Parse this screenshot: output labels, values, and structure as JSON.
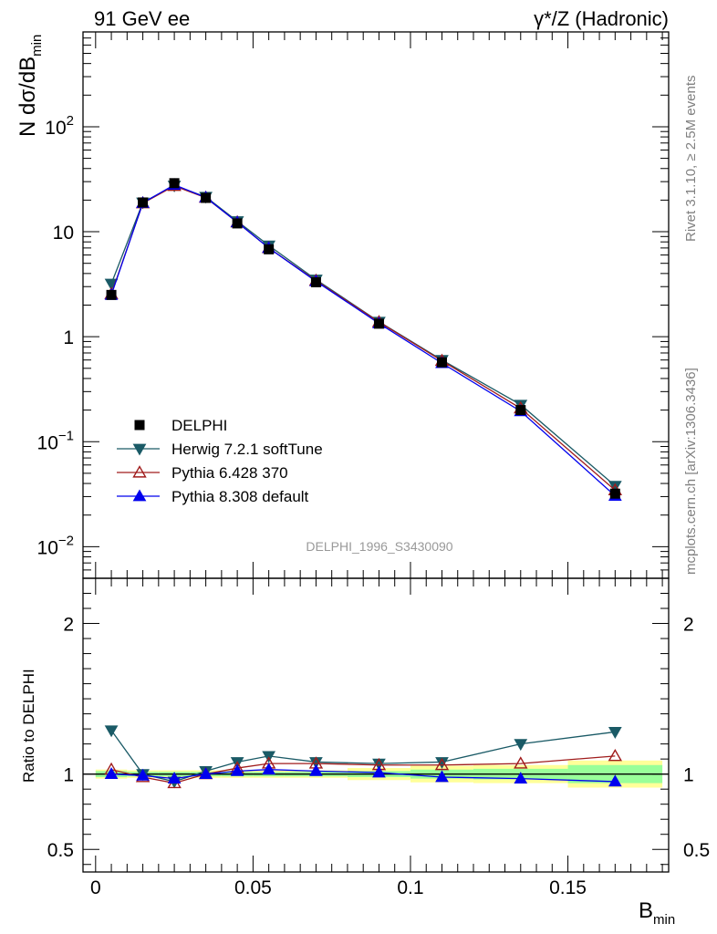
{
  "header": {
    "left": "91 GeV ee",
    "right": "γ*/Z (Hadronic)"
  },
  "side_notes": {
    "rivet": "Rivet 3.1.10, ≥ 2.5M events",
    "mcplots": "mcplots.cern.ch [arXiv:1306.3436]"
  },
  "watermark": "DELPHI_1996_S3430090",
  "colors": {
    "data": "#000000",
    "herwig": "#1a5a66",
    "pythia6": "#a01c1c",
    "pythia8": "#0000ee",
    "band_inner": "#99ff99",
    "band_outer": "#ffff99"
  },
  "chart_data": [
    {
      "type": "scatter",
      "panel": "main",
      "ylabel": "N dσ/dB",
      "ylabel_sub": "min",
      "yscale": "log",
      "ylim": [
        0.005,
        800
      ],
      "xlim": [
        -0.004,
        0.182
      ],
      "y_tick_labels": [
        {
          "base": "10",
          "exp": "−2",
          "value": 0.01
        },
        {
          "base": "10",
          "exp": "−1",
          "value": 0.1
        },
        {
          "base": "",
          "exp": "",
          "text": "1",
          "value": 1
        },
        {
          "base": "",
          "exp": "",
          "text": "10",
          "value": 10
        },
        {
          "base": "10",
          "exp": "2",
          "value": 100
        }
      ],
      "legend_position": "lower-left",
      "series": [
        {
          "name": "DELPHI",
          "key": "data",
          "marker": "square",
          "x": [
            0.005,
            0.015,
            0.025,
            0.035,
            0.045,
            0.055,
            0.07,
            0.09,
            0.11,
            0.135,
            0.165
          ],
          "y": [
            2.5,
            19.0,
            29.0,
            21.0,
            12.0,
            6.8,
            3.3,
            1.33,
            0.57,
            0.2,
            0.032
          ]
        },
        {
          "name": "Herwig 7.2.1 softTune",
          "key": "herwig",
          "marker": "triangle-down",
          "x": [
            0.005,
            0.015,
            0.025,
            0.035,
            0.045,
            0.055,
            0.07,
            0.09,
            0.11,
            0.135,
            0.165
          ],
          "y": [
            3.2,
            19.0,
            27.5,
            21.5,
            12.6,
            7.4,
            3.5,
            1.39,
            0.6,
            0.225,
            0.038
          ]
        },
        {
          "name": "Pythia 6.428 370",
          "key": "pythia6",
          "marker": "triangle-up-open",
          "x": [
            0.005,
            0.015,
            0.025,
            0.035,
            0.045,
            0.055,
            0.07,
            0.09,
            0.11,
            0.135,
            0.165
          ],
          "y": [
            2.55,
            18.7,
            27.3,
            21.1,
            12.3,
            7.0,
            3.42,
            1.38,
            0.59,
            0.208,
            0.0345
          ]
        },
        {
          "name": "Pythia 8.308 default",
          "key": "pythia8",
          "marker": "triangle-up",
          "x": [
            0.005,
            0.015,
            0.025,
            0.035,
            0.045,
            0.055,
            0.07,
            0.09,
            0.11,
            0.135,
            0.165
          ],
          "y": [
            2.5,
            18.8,
            28.0,
            21.2,
            12.3,
            7.0,
            3.37,
            1.34,
            0.56,
            0.195,
            0.0305
          ]
        }
      ]
    },
    {
      "type": "line",
      "panel": "ratio",
      "ylabel": "Ratio to DELPHI",
      "ylim": [
        0.35,
        2.3
      ],
      "xlim": [
        -0.004,
        0.182
      ],
      "xlabel": "B",
      "xlabel_sub": "min",
      "x_tick_labels": [
        {
          "text": "0",
          "value": 0
        },
        {
          "text": "0.05",
          "value": 0.05
        },
        {
          "text": "0.1",
          "value": 0.1
        },
        {
          "text": "0.15",
          "value": 0.15
        }
      ],
      "y_tick_labels": [
        {
          "text": "0.5",
          "value": 0.5
        },
        {
          "text": "1",
          "value": 1
        },
        {
          "text": "2",
          "value": 2
        }
      ],
      "bands": {
        "edges": [
          0.0,
          0.01,
          0.02,
          0.03,
          0.04,
          0.05,
          0.06,
          0.08,
          0.1,
          0.12,
          0.15,
          0.18
        ],
        "inner": [
          0.02,
          0.015,
          0.015,
          0.015,
          0.015,
          0.015,
          0.015,
          0.02,
          0.03,
          0.035,
          0.06
        ],
        "outer": [
          0.03,
          0.025,
          0.025,
          0.025,
          0.025,
          0.025,
          0.025,
          0.04,
          0.055,
          0.06,
          0.09
        ]
      },
      "series": [
        {
          "name": "Herwig 7.2.1 softTune",
          "key": "herwig",
          "marker": "triangle-down",
          "x": [
            0.005,
            0.015,
            0.025,
            0.035,
            0.045,
            0.055,
            0.07,
            0.09,
            0.11,
            0.135,
            0.165
          ],
          "y": [
            1.29,
            1.0,
            0.95,
            1.02,
            1.08,
            1.12,
            1.08,
            1.07,
            1.08,
            1.2,
            1.28
          ]
        },
        {
          "name": "Pythia 6.428 370",
          "key": "pythia6",
          "marker": "triangle-up-open",
          "x": [
            0.005,
            0.015,
            0.025,
            0.035,
            0.045,
            0.055,
            0.07,
            0.09,
            0.11,
            0.135,
            0.165
          ],
          "y": [
            1.03,
            0.98,
            0.94,
            1.0,
            1.04,
            1.07,
            1.07,
            1.06,
            1.06,
            1.07,
            1.12
          ]
        },
        {
          "name": "Pythia 8.308 default",
          "key": "pythia8",
          "marker": "triangle-up",
          "x": [
            0.005,
            0.015,
            0.025,
            0.035,
            0.045,
            0.055,
            0.07,
            0.09,
            0.11,
            0.135,
            0.165
          ],
          "y": [
            1.0,
            0.99,
            0.97,
            1.0,
            1.02,
            1.03,
            1.02,
            1.01,
            0.98,
            0.97,
            0.95
          ]
        }
      ]
    }
  ]
}
